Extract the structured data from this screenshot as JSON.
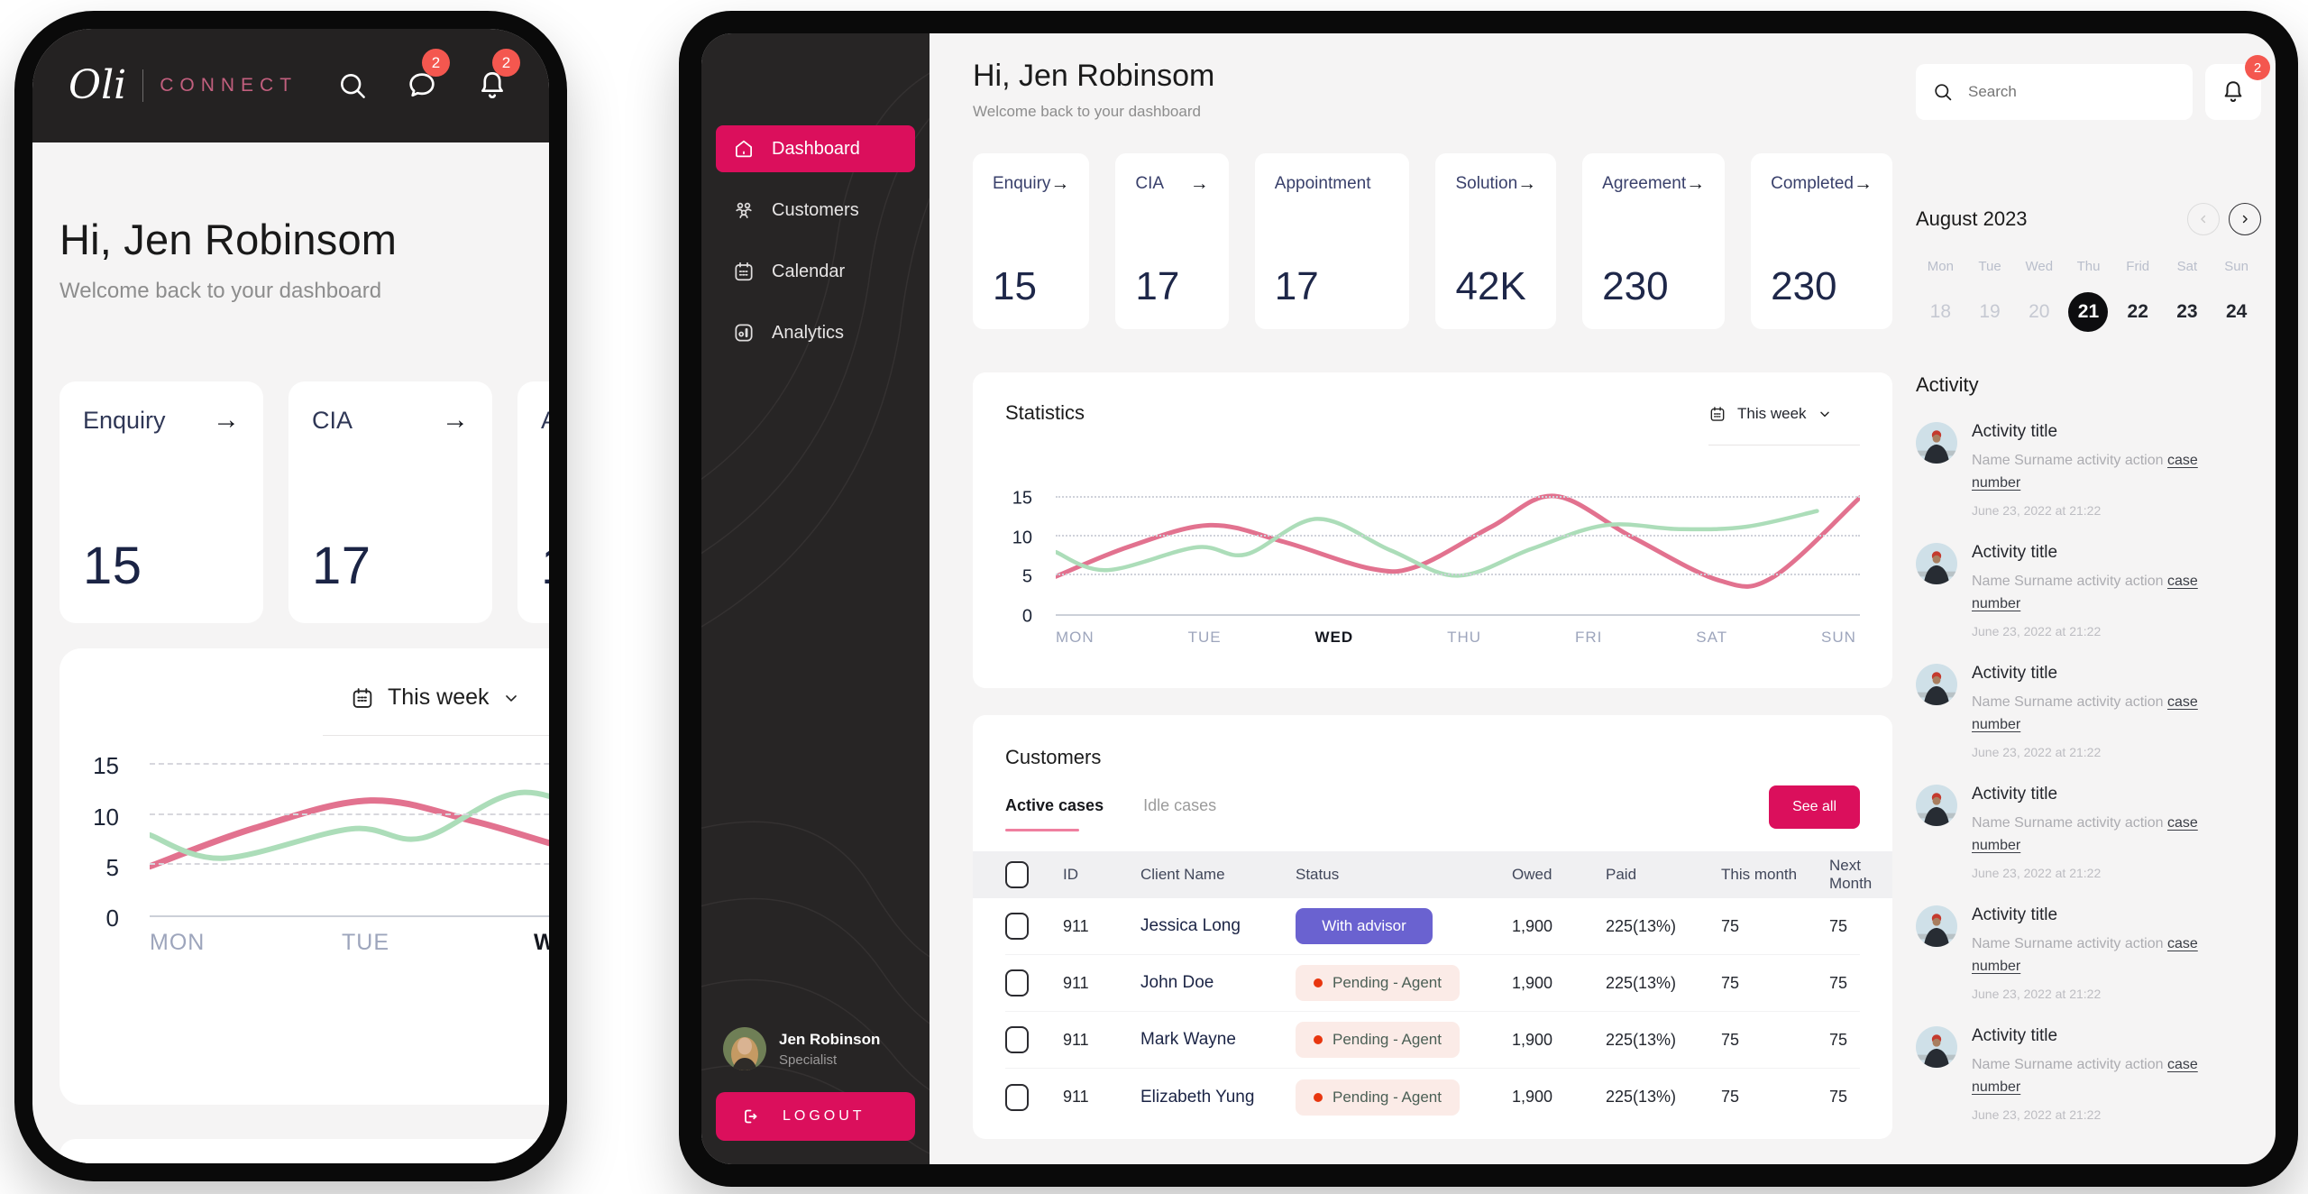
{
  "brand": {
    "script": "Oli",
    "word": "CONNECT"
  },
  "colors": {
    "primary_pink": "#DB0F5C",
    "logo_rose": "#C25F7E",
    "badge_red": "#F4574F",
    "navy": "#1E2749",
    "sidebar_bg": "#272525",
    "screen_bg": "#F5F4F4",
    "advisor_purple": "#6A62D0",
    "pending_bg": "#FBEBE7",
    "pending_dot": "#E8360F"
  },
  "greeting": {
    "title": "Hi, Jen Robinsom",
    "subtitle": "Welcome back to your dashboard"
  },
  "notifications": {
    "chat_count": "2",
    "bell_count": "2"
  },
  "search": {
    "placeholder": "Search"
  },
  "week_selector": {
    "label": "This week"
  },
  "stat_cards": [
    {
      "label": "Enquiry",
      "value": "15",
      "arrow": true
    },
    {
      "label": "CIA",
      "value": "17",
      "arrow": true
    },
    {
      "label": "Appointment",
      "value": "17",
      "arrow": false
    },
    {
      "label": "Solution",
      "value": "42K",
      "arrow": true
    },
    {
      "label": "Agreement",
      "value": "230",
      "arrow": true
    },
    {
      "label": "Completed",
      "value": "230",
      "arrow": true
    }
  ],
  "sidebar": {
    "items": [
      {
        "label": "Dashboard",
        "icon": "home-icon",
        "variant": "active"
      },
      {
        "label": "Customers",
        "icon": "people-icon"
      },
      {
        "label": "Calendar",
        "icon": "calendar-icon"
      },
      {
        "label": "Analytics",
        "icon": "analytics-icon"
      }
    ],
    "user": {
      "name": "Jen Robinson",
      "role": "Specialist"
    },
    "logout_label": "LOGOUT"
  },
  "statistics": {
    "title": "Statistics"
  },
  "chart_data": {
    "type": "line",
    "title": "Statistics",
    "categories": [
      "MON",
      "TUE",
      "WED",
      "THU",
      "FRI",
      "SAT",
      "SUN"
    ],
    "highlight_category": "WED",
    "yticks": [
      0,
      5,
      10,
      15
    ],
    "ylim": [
      0,
      16
    ],
    "grid": "horizontal-dashed",
    "legend": "none",
    "series": [
      {
        "name": "pink",
        "color": "#E2728F",
        "points": [
          [
            0,
            5
          ],
          [
            0.55,
            8.8
          ],
          [
            1.15,
            11.5
          ],
          [
            1.7,
            9.4
          ],
          [
            2.35,
            6.0
          ],
          [
            2.7,
            6.3
          ],
          [
            3.25,
            11.3
          ],
          [
            3.72,
            15.2
          ],
          [
            4.3,
            10
          ],
          [
            4.95,
            4.5
          ],
          [
            5.35,
            4.9
          ],
          [
            6,
            15
          ]
        ]
      },
      {
        "name": "green",
        "color": "#ACDDB9",
        "points": [
          [
            0,
            8.1
          ],
          [
            0.38,
            5.8
          ],
          [
            1.05,
            8.7
          ],
          [
            1.42,
            7.8
          ],
          [
            1.95,
            12.3
          ],
          [
            2.5,
            8.3
          ],
          [
            3.0,
            5.1
          ],
          [
            3.55,
            8.5
          ],
          [
            4.1,
            11.5
          ],
          [
            4.65,
            11.0
          ],
          [
            5.15,
            11.3
          ],
          [
            5.68,
            13.3
          ]
        ]
      }
    ]
  },
  "customers": {
    "title": "Customers",
    "tabs": [
      {
        "label": "Active cases",
        "variant": "active"
      },
      {
        "label": "Idle cases"
      }
    ],
    "see_all_label": "See all",
    "columns": [
      "ID",
      "Client Name",
      "Status",
      "Owed",
      "Paid",
      "This month",
      "Next Month"
    ],
    "rows": [
      {
        "id": "911",
        "name": "Jessica Long",
        "status": "With advisor",
        "status_variant": "advisor",
        "owed": "1,900",
        "paid": "225(13%)",
        "this_month": "75",
        "next_month": "75"
      },
      {
        "id": "911",
        "name": "John Doe",
        "status": "Pending - Agent",
        "status_variant": "pending",
        "owed": "1,900",
        "paid": "225(13%)",
        "this_month": "75",
        "next_month": "75"
      },
      {
        "id": "911",
        "name": "Mark Wayne",
        "status": "Pending - Agent",
        "status_variant": "pending",
        "owed": "1,900",
        "paid": "225(13%)",
        "this_month": "75",
        "next_month": "75"
      },
      {
        "id": "911",
        "name": "Elizabeth Yung",
        "status": "Pending - Agent",
        "status_variant": "pending",
        "owed": "1,900",
        "paid": "225(13%)",
        "this_month": "75",
        "next_month": "75"
      }
    ]
  },
  "calendar": {
    "month": "August 2023",
    "weekdays": [
      "Mon",
      "Tue",
      "Wed",
      "Thu",
      "Frid",
      "Sat",
      "Sun"
    ],
    "dates": [
      {
        "day": "18",
        "variant": "muted"
      },
      {
        "day": "19",
        "variant": "muted"
      },
      {
        "day": "20",
        "variant": "muted"
      },
      {
        "day": "21",
        "variant": "selected"
      },
      {
        "day": "22"
      },
      {
        "day": "23"
      },
      {
        "day": "24"
      }
    ]
  },
  "activity": {
    "title": "Activity",
    "items": [
      {
        "title": "Activity title",
        "text": "Name Surname activity action ",
        "link_text": "case number",
        "timestamp": "June 23, 2022 at 21:22"
      },
      {
        "title": "Activity title",
        "text": "Name Surname activity action ",
        "link_text": "case number",
        "timestamp": "June 23, 2022 at 21:22"
      },
      {
        "title": "Activity title",
        "text": "Name Surname activity action ",
        "link_text": "case number",
        "timestamp": "June 23, 2022 at 21:22"
      },
      {
        "title": "Activity title",
        "text": "Name Surname activity action ",
        "link_text": "case number",
        "timestamp": "June 23, 2022 at 21:22"
      },
      {
        "title": "Activity title",
        "text": "Name Surname activity action ",
        "link_text": "case number",
        "timestamp": "June 23, 2022 at 21:22"
      },
      {
        "title": "Activity title",
        "text": "Name Surname activity action ",
        "link_text": "case number",
        "timestamp": "June 23, 2022 at 21:22"
      }
    ]
  }
}
